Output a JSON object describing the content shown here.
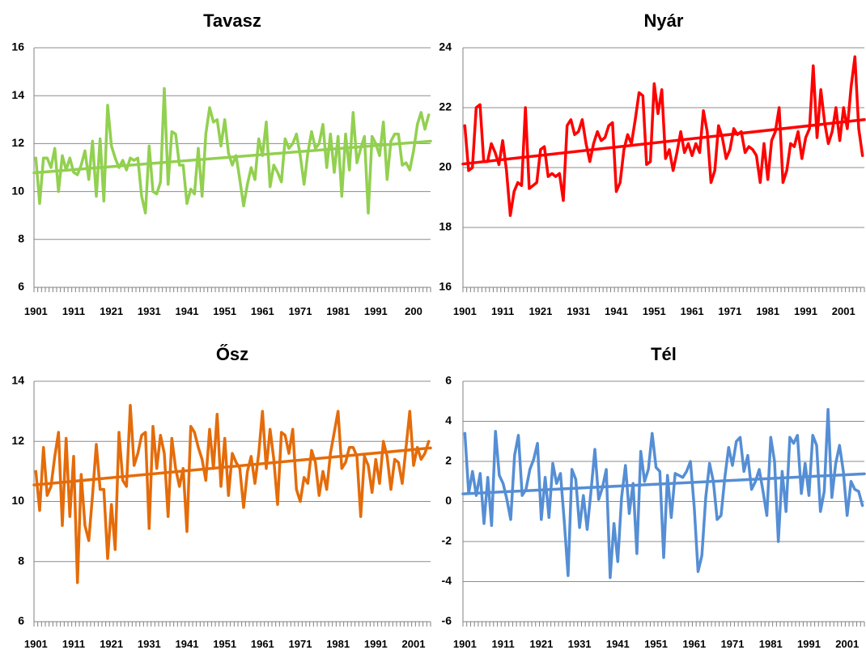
{
  "chart_data": [
    {
      "type": "line",
      "title": "Tavasz",
      "xlabel": "",
      "ylabel": "",
      "ylim": [
        6,
        16
      ],
      "yticks": [
        6,
        8,
        10,
        12,
        14,
        16
      ],
      "x_start": 1901,
      "x_tick_labels": [
        "1901",
        "1911",
        "1921",
        "1931",
        "1941",
        "1951",
        "1961",
        "1971",
        "1981",
        "1991",
        "200"
      ],
      "grid": true,
      "series": [
        {
          "color": "#92d050",
          "values": [
            11.4,
            9.5,
            11.4,
            11.4,
            11.0,
            11.8,
            10.0,
            11.5,
            10.9,
            11.4,
            10.8,
            10.7,
            11.1,
            11.7,
            10.5,
            12.1,
            9.8,
            12.2,
            9.6,
            13.6,
            11.9,
            11.4,
            11.0,
            11.3,
            10.9,
            11.4,
            11.3,
            11.4,
            9.8,
            9.1,
            11.9,
            10.0,
            9.9,
            10.4,
            14.3,
            10.3,
            12.5,
            12.4,
            11.1,
            11.1,
            9.5,
            10.1,
            9.9,
            11.8,
            9.8,
            12.4,
            13.5,
            12.9,
            13.0,
            11.9,
            13.0,
            11.6,
            11.1,
            11.5,
            10.5,
            9.4,
            10.3,
            11.0,
            10.5,
            12.2,
            11.5,
            12.9,
            10.2,
            11.1,
            10.8,
            10.4,
            12.2,
            11.8,
            12.0,
            12.4,
            11.5,
            10.3,
            11.6,
            12.5,
            11.8,
            12.0,
            12.8,
            11.0,
            12.4,
            10.8,
            12.3,
            9.8,
            12.4,
            10.9,
            13.3,
            11.2,
            11.8,
            12.3,
            9.1,
            12.3,
            12.0,
            11.5,
            12.9,
            10.5,
            12.1,
            12.4,
            12.4,
            11.1,
            11.2,
            10.9,
            11.7,
            12.8,
            13.3,
            12.6,
            13.2
          ]
        }
      ],
      "trend": {
        "start": 10.78,
        "end": 12.1,
        "color": "#92d050"
      }
    },
    {
      "type": "line",
      "title": "Nyár",
      "xlabel": "",
      "ylabel": "",
      "ylim": [
        16,
        24
      ],
      "yticks": [
        16,
        18,
        20,
        22,
        24
      ],
      "x_start": 1901,
      "x_tick_labels": [
        "1901",
        "1911",
        "1921",
        "1931",
        "1941",
        "1951",
        "1961",
        "1971",
        "1981",
        "1991",
        "2001"
      ],
      "grid": true,
      "series": [
        {
          "color": "#ff0000",
          "values": [
            21.4,
            19.9,
            20.0,
            22.0,
            22.1,
            20.2,
            20.2,
            20.8,
            20.5,
            20.1,
            20.9,
            19.9,
            18.4,
            19.2,
            19.5,
            19.4,
            22.0,
            19.3,
            19.4,
            19.5,
            20.6,
            20.7,
            19.7,
            19.8,
            19.7,
            19.8,
            18.9,
            21.4,
            21.6,
            21.1,
            21.2,
            21.6,
            20.8,
            20.2,
            20.8,
            21.2,
            20.9,
            21.0,
            21.4,
            21.5,
            19.2,
            19.5,
            20.6,
            21.1,
            20.8,
            21.6,
            22.5,
            22.4,
            20.1,
            20.2,
            22.8,
            21.8,
            22.6,
            20.3,
            20.6,
            19.9,
            20.5,
            21.2,
            20.5,
            20.8,
            20.4,
            20.8,
            20.5,
            21.9,
            21.2,
            19.5,
            19.9,
            21.4,
            21.0,
            20.3,
            20.6,
            21.3,
            21.1,
            21.2,
            20.5,
            20.7,
            20.6,
            20.4,
            19.5,
            20.8,
            19.6,
            20.9,
            21.2,
            22.0,
            19.5,
            19.9,
            20.8,
            20.7,
            21.2,
            20.3,
            21.0,
            21.3,
            23.4,
            21.0,
            22.6,
            21.5,
            20.8,
            21.2,
            22.0,
            20.9,
            22.0,
            21.3,
            22.7,
            23.7,
            21.3,
            20.4
          ]
        }
      ],
      "trend": {
        "start": 20.12,
        "end": 21.6,
        "color": "#ff0000"
      }
    },
    {
      "type": "line",
      "title": "Ősz",
      "xlabel": "",
      "ylabel": "",
      "ylim": [
        6,
        14
      ],
      "yticks": [
        6,
        8,
        10,
        12,
        14
      ],
      "x_start": 1901,
      "x_tick_labels": [
        "1901",
        "1911",
        "1921",
        "1931",
        "1941",
        "1951",
        "1961",
        "1971",
        "1981",
        "1991",
        "2001"
      ],
      "grid": true,
      "series": [
        {
          "color": "#e46c0a",
          "values": [
            11.0,
            9.7,
            11.8,
            10.2,
            10.5,
            11.5,
            12.3,
            9.2,
            12.1,
            9.5,
            11.5,
            7.3,
            10.9,
            9.2,
            8.7,
            10.2,
            11.9,
            10.4,
            10.4,
            8.1,
            9.9,
            8.4,
            12.3,
            10.7,
            10.5,
            13.2,
            11.2,
            11.6,
            12.2,
            12.3,
            9.1,
            12.5,
            11.1,
            12.2,
            11.6,
            9.5,
            12.1,
            11.1,
            10.5,
            11.1,
            9.0,
            12.5,
            12.3,
            11.8,
            11.4,
            10.7,
            12.4,
            11.1,
            12.9,
            10.5,
            12.1,
            10.2,
            11.6,
            11.3,
            11.1,
            9.8,
            11.0,
            11.5,
            10.6,
            11.6,
            13.0,
            11.1,
            12.4,
            11.4,
            9.9,
            12.3,
            12.2,
            11.6,
            12.4,
            10.4,
            10.0,
            10.8,
            10.6,
            11.7,
            11.3,
            10.2,
            11.0,
            10.4,
            11.6,
            12.3,
            13.0,
            11.1,
            11.3,
            11.8,
            11.8,
            11.5,
            9.5,
            11.5,
            11.2,
            10.3,
            11.4,
            10.6,
            12.0,
            11.5,
            10.4,
            11.4,
            11.3,
            10.6,
            11.8,
            13.0,
            11.2,
            11.8,
            11.4,
            11.6,
            12.0
          ]
        }
      ],
      "trend": {
        "start": 10.55,
        "end": 11.78,
        "color": "#e46c0a"
      }
    },
    {
      "type": "line",
      "title": "Tél",
      "xlabel": "",
      "ylabel": "",
      "ylim": [
        -6,
        6
      ],
      "yticks": [
        -6,
        -4,
        -2,
        0,
        2,
        4,
        6
      ],
      "x_start": 1901,
      "x_tick_labels": [
        "1901",
        "1911",
        "1921",
        "1931",
        "1941",
        "1951",
        "1961",
        "1971",
        "1981",
        "1991",
        "2001"
      ],
      "grid": true,
      "series": [
        {
          "color": "#558ed5",
          "values": [
            3.4,
            0.4,
            1.5,
            0.3,
            1.4,
            -1.1,
            1.2,
            -1.2,
            3.5,
            1.3,
            0.9,
            0.1,
            -0.9,
            2.3,
            3.3,
            0.3,
            0.6,
            1.6,
            2.1,
            2.9,
            -0.9,
            1.2,
            -0.8,
            1.9,
            0.9,
            1.4,
            -1.0,
            -3.7,
            1.6,
            1.1,
            -1.3,
            0.3,
            -1.4,
            0.5,
            2.6,
            0.1,
            0.7,
            1.6,
            -3.8,
            -1.1,
            -3.0,
            0.2,
            1.8,
            -0.6,
            0.9,
            -2.6,
            2.5,
            1.0,
            1.6,
            3.4,
            1.7,
            1.5,
            -2.8,
            1.3,
            -0.8,
            1.4,
            1.3,
            1.2,
            1.5,
            2.0,
            -0.3,
            -3.5,
            -2.7,
            0.2,
            1.9,
            1.0,
            -0.9,
            -0.7,
            1.2,
            2.7,
            1.8,
            3.0,
            3.2,
            1.5,
            2.3,
            0.6,
            1.0,
            1.6,
            0.5,
            -0.7,
            3.2,
            2.0,
            -2.0,
            1.5,
            -0.5,
            3.2,
            2.9,
            3.3,
            0.4,
            1.9,
            0.3,
            3.3,
            2.8,
            -0.5,
            0.5,
            4.6,
            0.2,
            1.9,
            2.8,
            1.5,
            -0.7,
            1.0,
            0.6,
            0.5,
            -0.2
          ]
        }
      ],
      "trend": {
        "start": 0.38,
        "end": 1.38,
        "color": "#558ed5"
      }
    }
  ]
}
